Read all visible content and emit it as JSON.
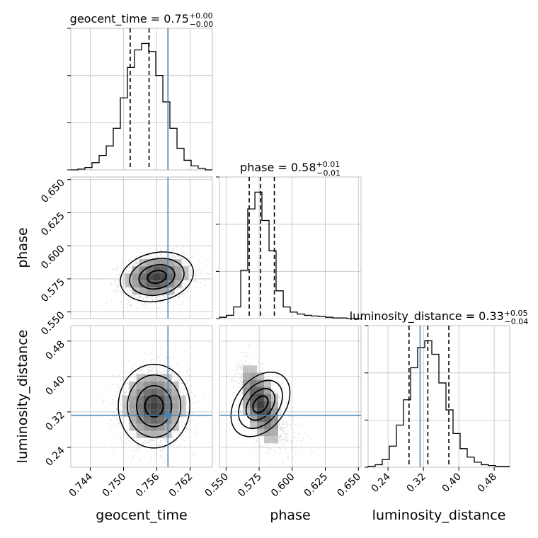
{
  "chart_data": {
    "type": "corner",
    "params": [
      "geocent_time",
      "phase",
      "luminosity_distance"
    ],
    "axis_labels": {
      "geocent_time": "geocent_time",
      "phase": "phase",
      "luminosity_distance": "luminosity_distance"
    },
    "titles": [
      {
        "param": "geocent_time",
        "prefix": "geocent_time = ",
        "value": "0.75",
        "upper": "+0.00",
        "lower": "−0.00"
      },
      {
        "param": "phase",
        "prefix": "phase = ",
        "value": "0.58",
        "upper": "+0.01",
        "lower": "−0.01"
      },
      {
        "param": "luminosity_distance",
        "prefix": "luminosity_distance = ",
        "value": "0.33",
        "upper": "+0.05",
        "lower": "−0.04"
      }
    ],
    "ranges": {
      "geocent_time": [
        0.7405,
        0.766
      ],
      "phase": [
        0.545,
        0.652
      ],
      "luminosity_distance": [
        0.195,
        0.515
      ]
    },
    "ticks": {
      "geocent_time": [
        "0.744",
        "0.750",
        "0.756",
        "0.762"
      ],
      "phase": [
        "0.550",
        "0.575",
        "0.600",
        "0.625",
        "0.650"
      ],
      "luminosity_distance": [
        "0.24",
        "0.32",
        "0.40",
        "0.48"
      ]
    },
    "truths": {
      "geocent_time": 0.758,
      "phase": null,
      "luminosity_distance": 0.3125
    },
    "quantiles": {
      "geocent_time": [
        0.7512,
        0.7546,
        0.758
      ],
      "phase": [
        0.5675,
        0.5761,
        0.5865
      ],
      "luminosity_distance": [
        0.2875,
        0.33,
        0.3775
      ]
    },
    "histograms": {
      "geocent_time": {
        "edges": [
          0.7405,
          0.74177,
          0.74305,
          0.74432,
          0.7456,
          0.74688,
          0.74815,
          0.74943,
          0.7507,
          0.75198,
          0.75325,
          0.75452,
          0.7558,
          0.75708,
          0.75835,
          0.75963,
          0.7609,
          0.76218,
          0.76345,
          0.76473,
          0.766
        ],
        "counts": [
          0,
          1,
          3,
          9,
          18,
          30,
          52,
          90,
          128,
          150,
          158,
          148,
          118,
          85,
          52,
          27,
          12,
          5,
          2,
          0
        ]
      },
      "phase": {
        "edges": [
          0.545,
          0.5503,
          0.5557,
          0.5611,
          0.5664,
          0.5718,
          0.5771,
          0.5825,
          0.5878,
          0.5932,
          0.5985,
          0.6038,
          0.6092,
          0.6145,
          0.6199,
          0.6252,
          0.6306,
          0.636,
          0.6413,
          0.6467,
          0.652
        ],
        "counts": [
          2,
          5,
          18,
          75,
          170,
          196,
          152,
          105,
          43,
          18,
          10,
          7,
          5,
          4,
          3,
          2,
          1,
          1,
          0,
          0
        ]
      },
      "luminosity_distance": {
        "edges": [
          0.195,
          0.211,
          0.227,
          0.243,
          0.259,
          0.275,
          0.291,
          0.307,
          0.323,
          0.339,
          0.355,
          0.371,
          0.387,
          0.403,
          0.419,
          0.435,
          0.451,
          0.467,
          0.483,
          0.499,
          0.515
        ],
        "counts": [
          1,
          3,
          9,
          25,
          50,
          80,
          118,
          142,
          150,
          134,
          100,
          68,
          40,
          22,
          12,
          6,
          3,
          2,
          1,
          1
        ]
      }
    },
    "colors": {
      "truth": "#4682b4",
      "contour": "#000000",
      "hist": "#000000",
      "grid": "#bfbfbf"
    }
  }
}
